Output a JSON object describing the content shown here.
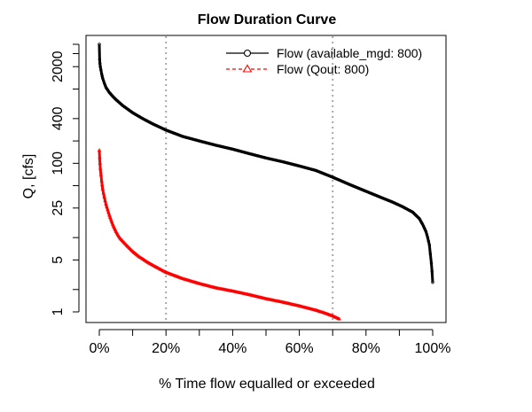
{
  "chart_data": {
    "type": "line",
    "title": "Flow Duration Curve",
    "xlabel": "% Time flow equalled or exceeded",
    "ylabel": "Q, [cfs]",
    "x_scale": "linear",
    "y_scale": "log",
    "xlim": [
      0,
      100
    ],
    "ylim": [
      0.8,
      5000
    ],
    "x_ticks": [
      0,
      10,
      20,
      30,
      40,
      50,
      60,
      70,
      80,
      90,
      100
    ],
    "x_tick_labels": [
      "0%",
      "",
      "20%",
      "",
      "40%",
      "",
      "60%",
      "",
      "80%",
      "",
      "100%"
    ],
    "y_ticks": [
      1,
      2,
      5,
      10,
      25,
      50,
      100,
      200,
      400,
      1000,
      2000,
      3000,
      4000
    ],
    "y_tick_labels": [
      "1",
      "",
      "5",
      "",
      "25",
      "",
      "100",
      "",
      "400",
      "",
      "2000",
      "",
      ""
    ],
    "vlines": [
      20,
      70
    ],
    "vline_color": "#a8a8a8",
    "grid": false,
    "legend_position": "top-right",
    "series": [
      {
        "name": "Flow (available_mgd: 800)",
        "color": "#000000",
        "marker": "circle",
        "line_style": "solid",
        "x": [
          0,
          0.1,
          0.2,
          0.3,
          0.5,
          0.7,
          1,
          1.5,
          2,
          3,
          4,
          5,
          7,
          10,
          13,
          16,
          20,
          25,
          30,
          35,
          40,
          45,
          50,
          55,
          60,
          65,
          70,
          75,
          80,
          85,
          88,
          91,
          94,
          96,
          97,
          98,
          98.5,
          99,
          99.3,
          99.6,
          99.8,
          100
        ],
        "y": [
          4000,
          2500,
          2200,
          2000,
          1800,
          1600,
          1400,
          1200,
          1050,
          900,
          800,
          720,
          600,
          480,
          400,
          340,
          280,
          230,
          200,
          175,
          155,
          135,
          118,
          105,
          92,
          80,
          65,
          52,
          42,
          34,
          30,
          26,
          22,
          18,
          15,
          12,
          10,
          8,
          6,
          4.5,
          3.5,
          2.5
        ]
      },
      {
        "name": "Flow (Qout: 800)",
        "color": "#ff0000",
        "marker": "triangle",
        "line_style": "dashed",
        "x": [
          0,
          0.1,
          0.2,
          0.3,
          0.5,
          0.7,
          1,
          1.5,
          2,
          3,
          4,
          5,
          6,
          8,
          10,
          12,
          15,
          18,
          20,
          25,
          30,
          35,
          40,
          45,
          50,
          55,
          60,
          65,
          68,
          70,
          72
        ],
        "y": [
          150,
          120,
          100,
          85,
          70,
          58,
          45,
          35,
          28,
          20,
          15,
          12,
          10,
          8,
          6.5,
          5.5,
          4.5,
          3.8,
          3.4,
          2.8,
          2.4,
          2.1,
          1.9,
          1.7,
          1.5,
          1.35,
          1.2,
          1.05,
          0.95,
          0.88,
          0.8
        ]
      }
    ]
  }
}
